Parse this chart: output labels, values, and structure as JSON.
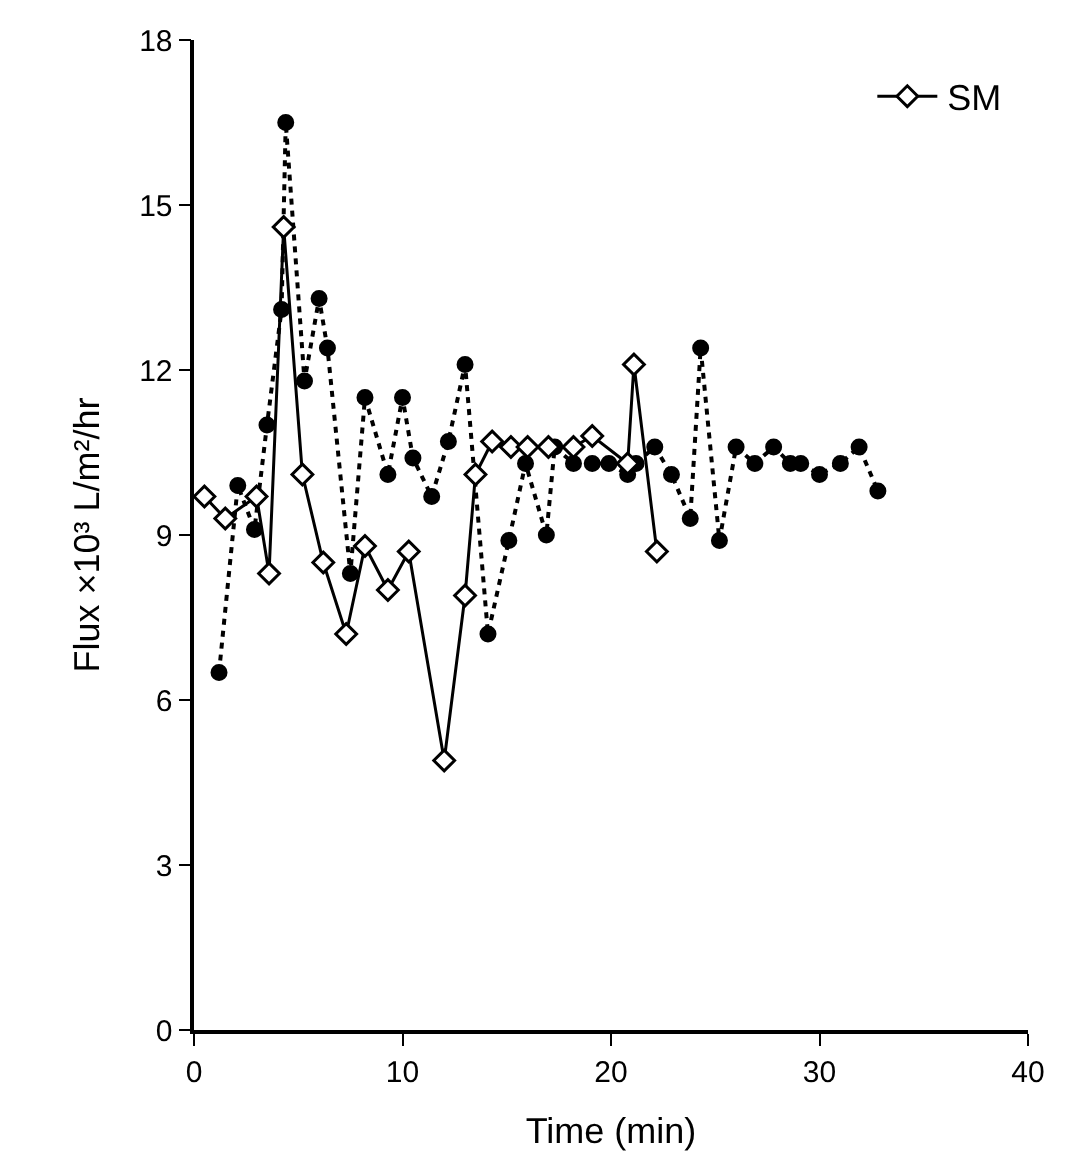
{
  "chart_data": {
    "type": "line",
    "xlabel": "Time (min)",
    "ylabel": "Flux ×10³ L/m²/hr",
    "xlim": [
      0,
      40
    ],
    "xticks": [
      0,
      10,
      20,
      30,
      40
    ],
    "ylim": [
      0,
      18
    ],
    "yticks": [
      0,
      3,
      6,
      9,
      12,
      15,
      18
    ],
    "legend": "top right",
    "series": [
      {
        "name": "SM",
        "color": "#000000",
        "marker": "diamond",
        "line_style": "solid",
        "x": [
          0.5,
          1.5,
          3.0,
          3.6,
          4.3,
          5.2,
          6.2,
          7.3,
          8.2,
          9.3,
          10.3,
          12.0,
          13.0,
          13.5,
          14.3,
          15.2,
          16.0,
          17.0,
          18.2,
          19.1,
          20.8,
          21.1,
          22.2
        ],
        "values": [
          9.7,
          9.3,
          9.7,
          8.3,
          14.6,
          10.1,
          8.5,
          7.2,
          8.8,
          8.0,
          8.7,
          4.9,
          7.9,
          10.1,
          10.7,
          10.6,
          10.6,
          10.6,
          10.6,
          10.8,
          10.3,
          12.1,
          8.7
        ]
      },
      {
        "color": "#000000",
        "marker": "circle",
        "line_style": "dotted",
        "x": [
          1.2,
          2.1,
          2.9,
          3.5,
          4.2,
          4.4,
          5.3,
          6.0,
          6.4,
          7.5,
          8.2,
          9.3,
          10.0,
          10.5,
          11.4,
          12.2,
          13.0,
          14.1,
          15.1,
          15.9,
          16.9,
          17.3,
          18.2,
          19.1,
          19.9,
          20.8,
          21.2,
          22.1,
          22.9,
          23.8,
          24.3,
          25.2,
          26.0,
          26.9,
          27.8,
          28.6,
          29.1,
          30.0,
          31.0,
          31.9,
          32.8
        ],
        "values": [
          6.5,
          9.9,
          9.1,
          11.0,
          13.1,
          16.5,
          11.8,
          13.3,
          12.4,
          8.3,
          11.5,
          10.1,
          11.5,
          10.4,
          9.7,
          10.7,
          12.1,
          7.2,
          8.9,
          10.3,
          9.0,
          10.6,
          10.3,
          10.3,
          10.3,
          10.1,
          10.3,
          10.6,
          10.1,
          9.3,
          12.4,
          8.9,
          10.6,
          10.3,
          10.6,
          10.3,
          10.3,
          10.1,
          10.3,
          10.6,
          9.8
        ]
      }
    ]
  }
}
